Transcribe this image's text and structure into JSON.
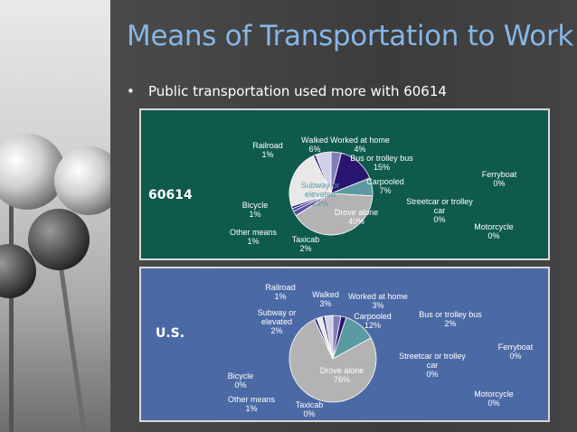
{
  "slide": {
    "title": "Means of Transportation to Work",
    "bullet": "Public transportation used more with 60614"
  },
  "colors": {
    "title": "#86b6e6",
    "panel_top_bg": "#0e5a4c",
    "panel_bottom_bg": "#4b69a5",
    "drove_alone": "#b3b3b3",
    "carpooled": "#5a9aa0",
    "bus": "#2a1670",
    "worked_at_home": "#7f7fb8",
    "walked": "#d0d0e6",
    "subway": "#e8e8e8",
    "taxicab": "#5a50a0",
    "other": "#3a2c88"
  },
  "chart_data": [
    {
      "type": "pie",
      "panel_label": "60614",
      "categories": [
        "Drove alone",
        "Carpooled",
        "Bus or trolley bus",
        "Streetcar or trolley car",
        "Subway or elevated",
        "Railroad",
        "Ferryboat",
        "Taxicab",
        "Motorcycle",
        "Bicycle",
        "Walked",
        "Other means",
        "Worked at home"
      ],
      "values": [
        40,
        7,
        15,
        0,
        23,
        1,
        0,
        2,
        0,
        1,
        6,
        1,
        4
      ],
      "labels": [
        {
          "lines": [
            "Drove alone",
            "40%"
          ]
        },
        {
          "lines": [
            "Carpooled",
            "7%"
          ]
        },
        {
          "lines": [
            "Bus or trolley bus",
            "15%"
          ]
        },
        {
          "lines": [
            "Streetcar or trolley",
            "car",
            "0%"
          ]
        },
        {
          "lines": [
            "Subway or",
            "elevated",
            "23%"
          ]
        },
        {
          "lines": [
            "Railroad",
            "1%"
          ]
        },
        {
          "lines": [
            "Ferryboat",
            "0%"
          ]
        },
        {
          "lines": [
            "Taxicab",
            "2%"
          ]
        },
        {
          "lines": [
            "Motorcycle",
            "0%"
          ]
        },
        {
          "lines": [
            "Bicycle",
            "1%"
          ]
        },
        {
          "lines": [
            "Walked",
            "6%"
          ]
        },
        {
          "lines": [
            "Other means",
            "1%"
          ]
        },
        {
          "lines": [
            "Worked at home",
            "4%"
          ]
        }
      ]
    },
    {
      "type": "pie",
      "panel_label": "U.S.",
      "categories": [
        "Drove alone",
        "Carpooled",
        "Bus or trolley bus",
        "Streetcar or trolley car",
        "Subway or elevated",
        "Railroad",
        "Ferryboat",
        "Taxicab",
        "Motorcycle",
        "Bicycle",
        "Walked",
        "Other means",
        "Worked at home"
      ],
      "values": [
        76,
        12,
        2,
        0,
        2,
        1,
        0,
        0,
        0,
        0,
        3,
        1,
        3
      ],
      "labels": [
        {
          "lines": [
            "Drove alone",
            "76%"
          ]
        },
        {
          "lines": [
            "Carpooled",
            "12%"
          ]
        },
        {
          "lines": [
            "Bus or trolley bus",
            "2%"
          ]
        },
        {
          "lines": [
            "Streetcar or trolley",
            "car",
            "0%"
          ]
        },
        {
          "lines": [
            "Subway or",
            "elevated",
            "2%"
          ]
        },
        {
          "lines": [
            "Railroad",
            "1%"
          ]
        },
        {
          "lines": [
            "Ferryboat",
            "0%"
          ]
        },
        {
          "lines": [
            "Taxicab",
            "0%"
          ]
        },
        {
          "lines": [
            "Motorcycle",
            "0%"
          ]
        },
        {
          "lines": [
            "Bicycle",
            "0%"
          ]
        },
        {
          "lines": [
            "Walked",
            "3%"
          ]
        },
        {
          "lines": [
            "Other means",
            "1%"
          ]
        },
        {
          "lines": [
            "Worked at home",
            "3%"
          ]
        }
      ]
    }
  ]
}
